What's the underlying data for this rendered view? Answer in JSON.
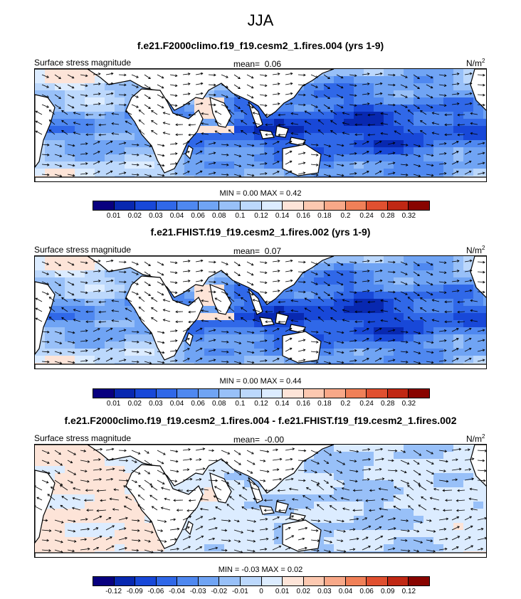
{
  "title": "JJA",
  "variable_label": "Surface stress magnitude",
  "units": "N/m",
  "units_sup": "2",
  "palette_abs": [
    "#08007f",
    "#0828b0",
    "#1848d8",
    "#3068e8",
    "#4f88f0",
    "#70a4f4",
    "#98c0f8",
    "#bcd8fc",
    "#dcecff",
    "#fde4d8",
    "#fcc8b0",
    "#f8a888",
    "#f08058",
    "#e05030",
    "#c02814",
    "#880400"
  ],
  "palette_diff": [
    "#08007f",
    "#0828b0",
    "#1848d8",
    "#3068e8",
    "#4f88f0",
    "#70a4f4",
    "#98c0f8",
    "#bcd8fc",
    "#dcecff",
    "#fde4d8",
    "#fcc8b0",
    "#f8a888",
    "#f08058",
    "#e05030",
    "#c02814",
    "#880400"
  ],
  "panels": [
    {
      "title": "f.e21.F2000climo.f19_f19.cesm2_1.fires.004 (yrs 1-9)",
      "mean_label": "mean=",
      "mean_value": "0.06",
      "minmax": "MIN =  0.00 MAX =   0.42",
      "type": "absolute",
      "ticks": [
        "0.01",
        "0.02",
        "0.03",
        "0.04",
        "0.06",
        "0.08",
        "0.1",
        "0.12",
        "0.14",
        "0.16",
        "0.18",
        "0.2",
        "0.24",
        "0.28",
        "0.32"
      ]
    },
    {
      "title": "f.e21.FHIST.f19_f19.cesm2_1.fires.002 (yrs 1-9)",
      "mean_label": "mean=",
      "mean_value": "0.07",
      "minmax": "MIN =  0.00 MAX =   0.44",
      "type": "absolute",
      "ticks": [
        "0.01",
        "0.02",
        "0.03",
        "0.04",
        "0.06",
        "0.08",
        "0.1",
        "0.12",
        "0.14",
        "0.16",
        "0.18",
        "0.2",
        "0.24",
        "0.28",
        "0.32"
      ]
    },
    {
      "title": "f.e21.F2000climo.f19_f19.cesm2_1.fires.004 - f.e21.FHIST.f19_f19.cesm2_1.fires.002",
      "mean_label": "mean=",
      "mean_value": "-0.00",
      "minmax": "MIN = -0.03 MAX =   0.02",
      "type": "difference",
      "ticks": [
        "-0.12",
        "-0.09",
        "-0.06",
        "-0.04",
        "-0.03",
        "-0.02",
        "-0.01",
        "0",
        "0.01",
        "0.02",
        "0.03",
        "0.04",
        "0.06",
        "0.09",
        "0.12"
      ]
    }
  ]
}
